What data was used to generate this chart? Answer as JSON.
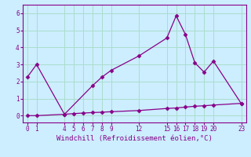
{
  "xlabel": "Windchill (Refroidissement éolien,°C)",
  "background_color": "#cceeff",
  "grid_color": "#aaddcc",
  "line_color": "#880088",
  "xlim": [
    -0.5,
    23.5
  ],
  "ylim": [
    -0.4,
    6.5
  ],
  "xticks": [
    0,
    1,
    4,
    5,
    6,
    7,
    8,
    9,
    12,
    15,
    16,
    17,
    18,
    19,
    20,
    23
  ],
  "yticks": [
    0,
    1,
    2,
    3,
    4,
    5,
    6
  ],
  "line1_x": [
    0,
    1,
    4,
    7,
    8,
    9,
    12,
    15,
    16,
    17,
    18,
    19,
    20,
    23
  ],
  "line1_y": [
    2.25,
    3.0,
    0.08,
    1.75,
    2.25,
    2.65,
    3.5,
    4.55,
    5.85,
    4.75,
    3.1,
    2.55,
    3.2,
    0.7
  ],
  "line2_x": [
    0,
    1,
    4,
    5,
    6,
    7,
    8,
    9,
    12,
    15,
    16,
    17,
    18,
    19,
    20,
    23
  ],
  "line2_y": [
    0.0,
    0.0,
    0.08,
    0.12,
    0.15,
    0.18,
    0.2,
    0.23,
    0.3,
    0.42,
    0.45,
    0.5,
    0.55,
    0.58,
    0.62,
    0.72
  ],
  "marker": "D",
  "markersize": 2.5,
  "linewidth": 0.9,
  "tick_fontsize": 5.5,
  "xlabel_fontsize": 6.5
}
